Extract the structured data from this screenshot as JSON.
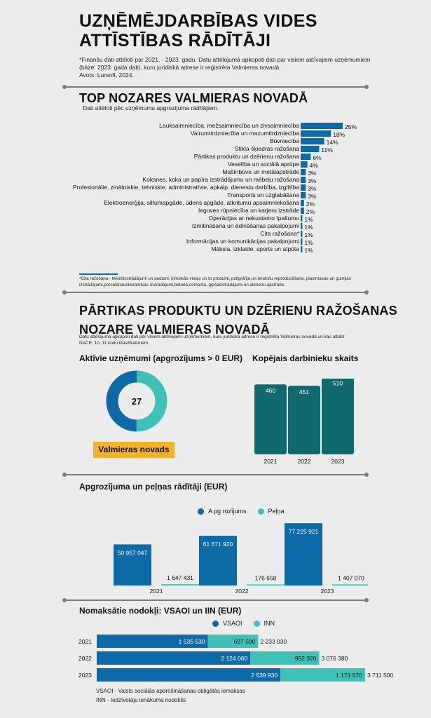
{
  "header": {
    "title_line1": "UZŅĒMĒJDARBĪBAS VIDES",
    "title_line2": "ATTĪSTĪBAS RĀDĪTĀJI",
    "note_line1": "*Finanšu dati attēloti par 2021. - 2023. gadu. Datu attēlojumā apkopoti dati par visiem aktīvajiem uzņēmumiem",
    "note_line2": "(bāze: 2023. gada dati), kuru juridiskā adrese ir reģistrēta Valmieras novadā.",
    "source": "Avots: Lursoft, 2024."
  },
  "top_section": {
    "title": "TOP NOZARES VALMIERAS NOVADĀ",
    "subtitle": "Dati attēloti pēc uzņēmumu apgrozījuma rādītājiem.",
    "footnote_line1": "*Cita ražošana - tekstilizstrādājumi un audumi, ķīmiskās vielas un to produkti, poligrāfija un ierakstu reproducēšana, plastmasas un gumijas",
    "footnote_line2": "izstrādājumi,porcelānaunkeramikas izstrādājumi,betona,cementa, ģipšaizstrādājumi un akmenu apstrāde."
  },
  "food_section": {
    "title_line1": "PĀRTIKAS PRODUKTU UN DZĒRIENU RAŽOŠANAS",
    "title_line2": "NOZARE VALMIERAS NOVADĀ",
    "note_line1": "Datu attēlojumā apkopoti dati par visiem aktīvajiem uzņēmumiem, kuru juridiskā adrese ir reģistrēta Valmieras novadā un kas atbilst",
    "note_line2": "NACE: 10, 11 kodu klasifikatoriem.",
    "active_title": "Aktīvie uzņēmumi (apgrozījums > 0 EUR)",
    "active_value": "27",
    "region_badge": "Valmieras novads",
    "employees_title": "Kopējais darbinieku skaits",
    "revenue_title": "Apgrozījuma un peļņas rādītāji (EUR)",
    "taxes_title": "Nomaksātie nodokļi: VSAOI un IIN (EUR)",
    "tax_note_line1": "VSAOI - Valsts sociālās apdrošināšanas obligātās iemaksas",
    "tax_note_line2": "INN - Iedzīvotāju ienākuma nodoklis"
  },
  "colors": {
    "blue": "#0c6aa6",
    "teal": "#3ec1b6",
    "dark_teal": "#0e6a6c",
    "orange": "#f0b32a"
  },
  "chart_data": [
    {
      "type": "bar",
      "orientation": "horizontal",
      "title": "TOP NOZARES VALMIERAS NOVADĀ",
      "categories": [
        "Lauksaimniecība, mežsaimniecība un zivsaimniecība",
        "Vairumtirdzniecība un mazumtirdzniecība",
        "Būvniecība",
        "Stikla šķiedras ražošana",
        "Pārtikas produktu un dzērienu ražošana",
        "Veselība un sociālā aprūpe",
        "Mašīnbūve un metālapstrāde",
        "Koksnes, koka un papīra izstrādājumu un mēbeļu ražošana",
        "Profesionālie, zinātniskie, tehniskie, administratīvie, apkalp. dienestu darbība, izglītība",
        "Transports un uzglabāšana",
        "Elektroenerģija, siltumapgāde, ūdens apgāde, atkritumu apsaimniekošana",
        "Ieguves rūpniecība un karjeru izstrāde",
        "Operācijas ar nekustamo īpašumu",
        "Izmitināšana un ēdināšanas pakalpojumi",
        "Cita ražošana*",
        "Informācijas un komunikācijas pakalpojumi",
        "Māksla, izklaide, sports un atpūta"
      ],
      "values": [
        25,
        18,
        14,
        11,
        6,
        4,
        3,
        3,
        3,
        3,
        2,
        2,
        1,
        1,
        1,
        1,
        1
      ],
      "value_labels": [
        "25%",
        "18%",
        "14%",
        "11%",
        "6%",
        "4%",
        "3%",
        "3%",
        "3%",
        "3%",
        "2%",
        "2%",
        "1%",
        "1%",
        "1%",
        "1%",
        "1%"
      ],
      "unit": "%"
    },
    {
      "type": "pie",
      "title": "Aktīvie uzņēmumi (apgrozījums > 0 EUR)",
      "center_label": "27",
      "segments": [
        {
          "name": "segment-a",
          "value": 50
        },
        {
          "name": "segment-b",
          "value": 50
        }
      ]
    },
    {
      "type": "bar",
      "title": "Kopējais darbinieku skaits",
      "categories": [
        "2021",
        "2022",
        "2023"
      ],
      "values": [
        460,
        451,
        510
      ],
      "value_labels": [
        "460",
        "451",
        "510"
      ],
      "ylim": [
        0,
        530
      ]
    },
    {
      "type": "bar",
      "title": "Apgrozījuma un peļņas rādītāji (EUR)",
      "categories": [
        "2021",
        "2022",
        "2023"
      ],
      "series": [
        {
          "name": "A pg rozījums",
          "values": [
            50957047,
            61671920,
            77225921
          ],
          "labels": [
            "50 957 047",
            "61 671 920",
            "77 225 921"
          ]
        },
        {
          "name": "Peļņa",
          "values": [
            1647431,
            176658,
            1407070
          ],
          "labels": [
            "1 647 431",
            "176 658",
            "1 407 070"
          ]
        }
      ],
      "ylim": [
        0,
        80000000
      ]
    },
    {
      "type": "bar",
      "orientation": "horizontal",
      "stacked": true,
      "title": "Nomaksātie nodokļi: VSAOI un IIN (EUR)",
      "categories": [
        "2021",
        "2022",
        "2023"
      ],
      "series": [
        {
          "name": "VSAOI",
          "values": [
            1535530,
            2124060,
            2539930
          ],
          "labels": [
            "1 535 530",
            "2 124 060",
            "2 539 930"
          ]
        },
        {
          "name": "INN",
          "values": [
            697500,
            952320,
            1171570
          ],
          "labels": [
            "697 500",
            "952 320",
            "1 171 570"
          ]
        }
      ],
      "totals": [
        "2 233 030",
        "3 076 380",
        "3 711 500"
      ]
    }
  ]
}
